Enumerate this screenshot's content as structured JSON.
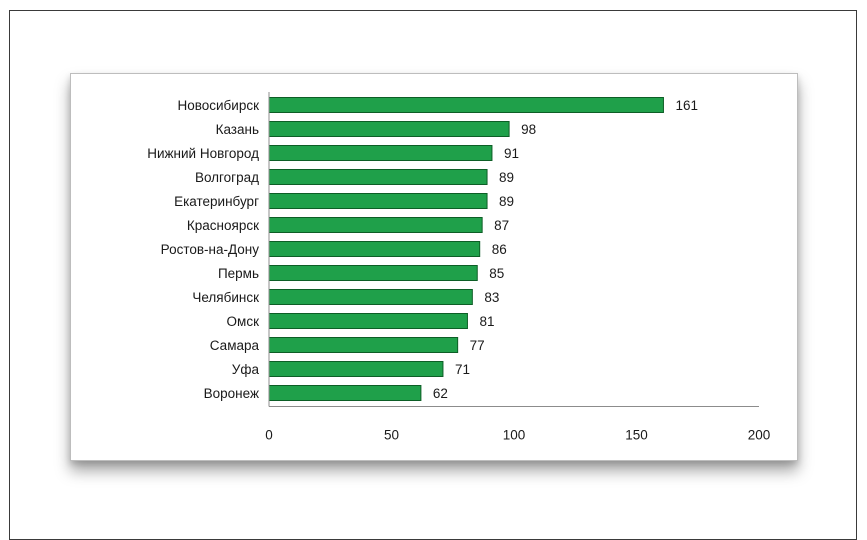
{
  "chart_data": {
    "type": "bar",
    "orientation": "horizontal",
    "categories": [
      "Новосибирск",
      "Казань",
      "Нижний Новгород",
      "Волгоград",
      "Екатеринбург",
      "Красноярск",
      "Ростов-на-Дону",
      "Пермь",
      "Челябинск",
      "Омск",
      "Самара",
      "Уфа",
      "Воронеж"
    ],
    "values": [
      161,
      98,
      91,
      89,
      89,
      87,
      86,
      85,
      83,
      81,
      77,
      71,
      62
    ],
    "data_labels": [
      "161",
      "98",
      "91",
      "89",
      "89",
      "87",
      "86",
      "85",
      "83",
      "81",
      "77",
      "71",
      "62"
    ],
    "xlim": [
      0,
      200
    ],
    "x_ticks": [
      0,
      50,
      100,
      150,
      200
    ],
    "x_tick_labels": [
      "0",
      "50",
      "100",
      "150",
      "200"
    ],
    "grid": false,
    "legend": "none",
    "colors": {
      "bar_fill": "#1fa04a",
      "bar_stroke": "#0d5e26",
      "axis": "#8c8c8c"
    }
  }
}
